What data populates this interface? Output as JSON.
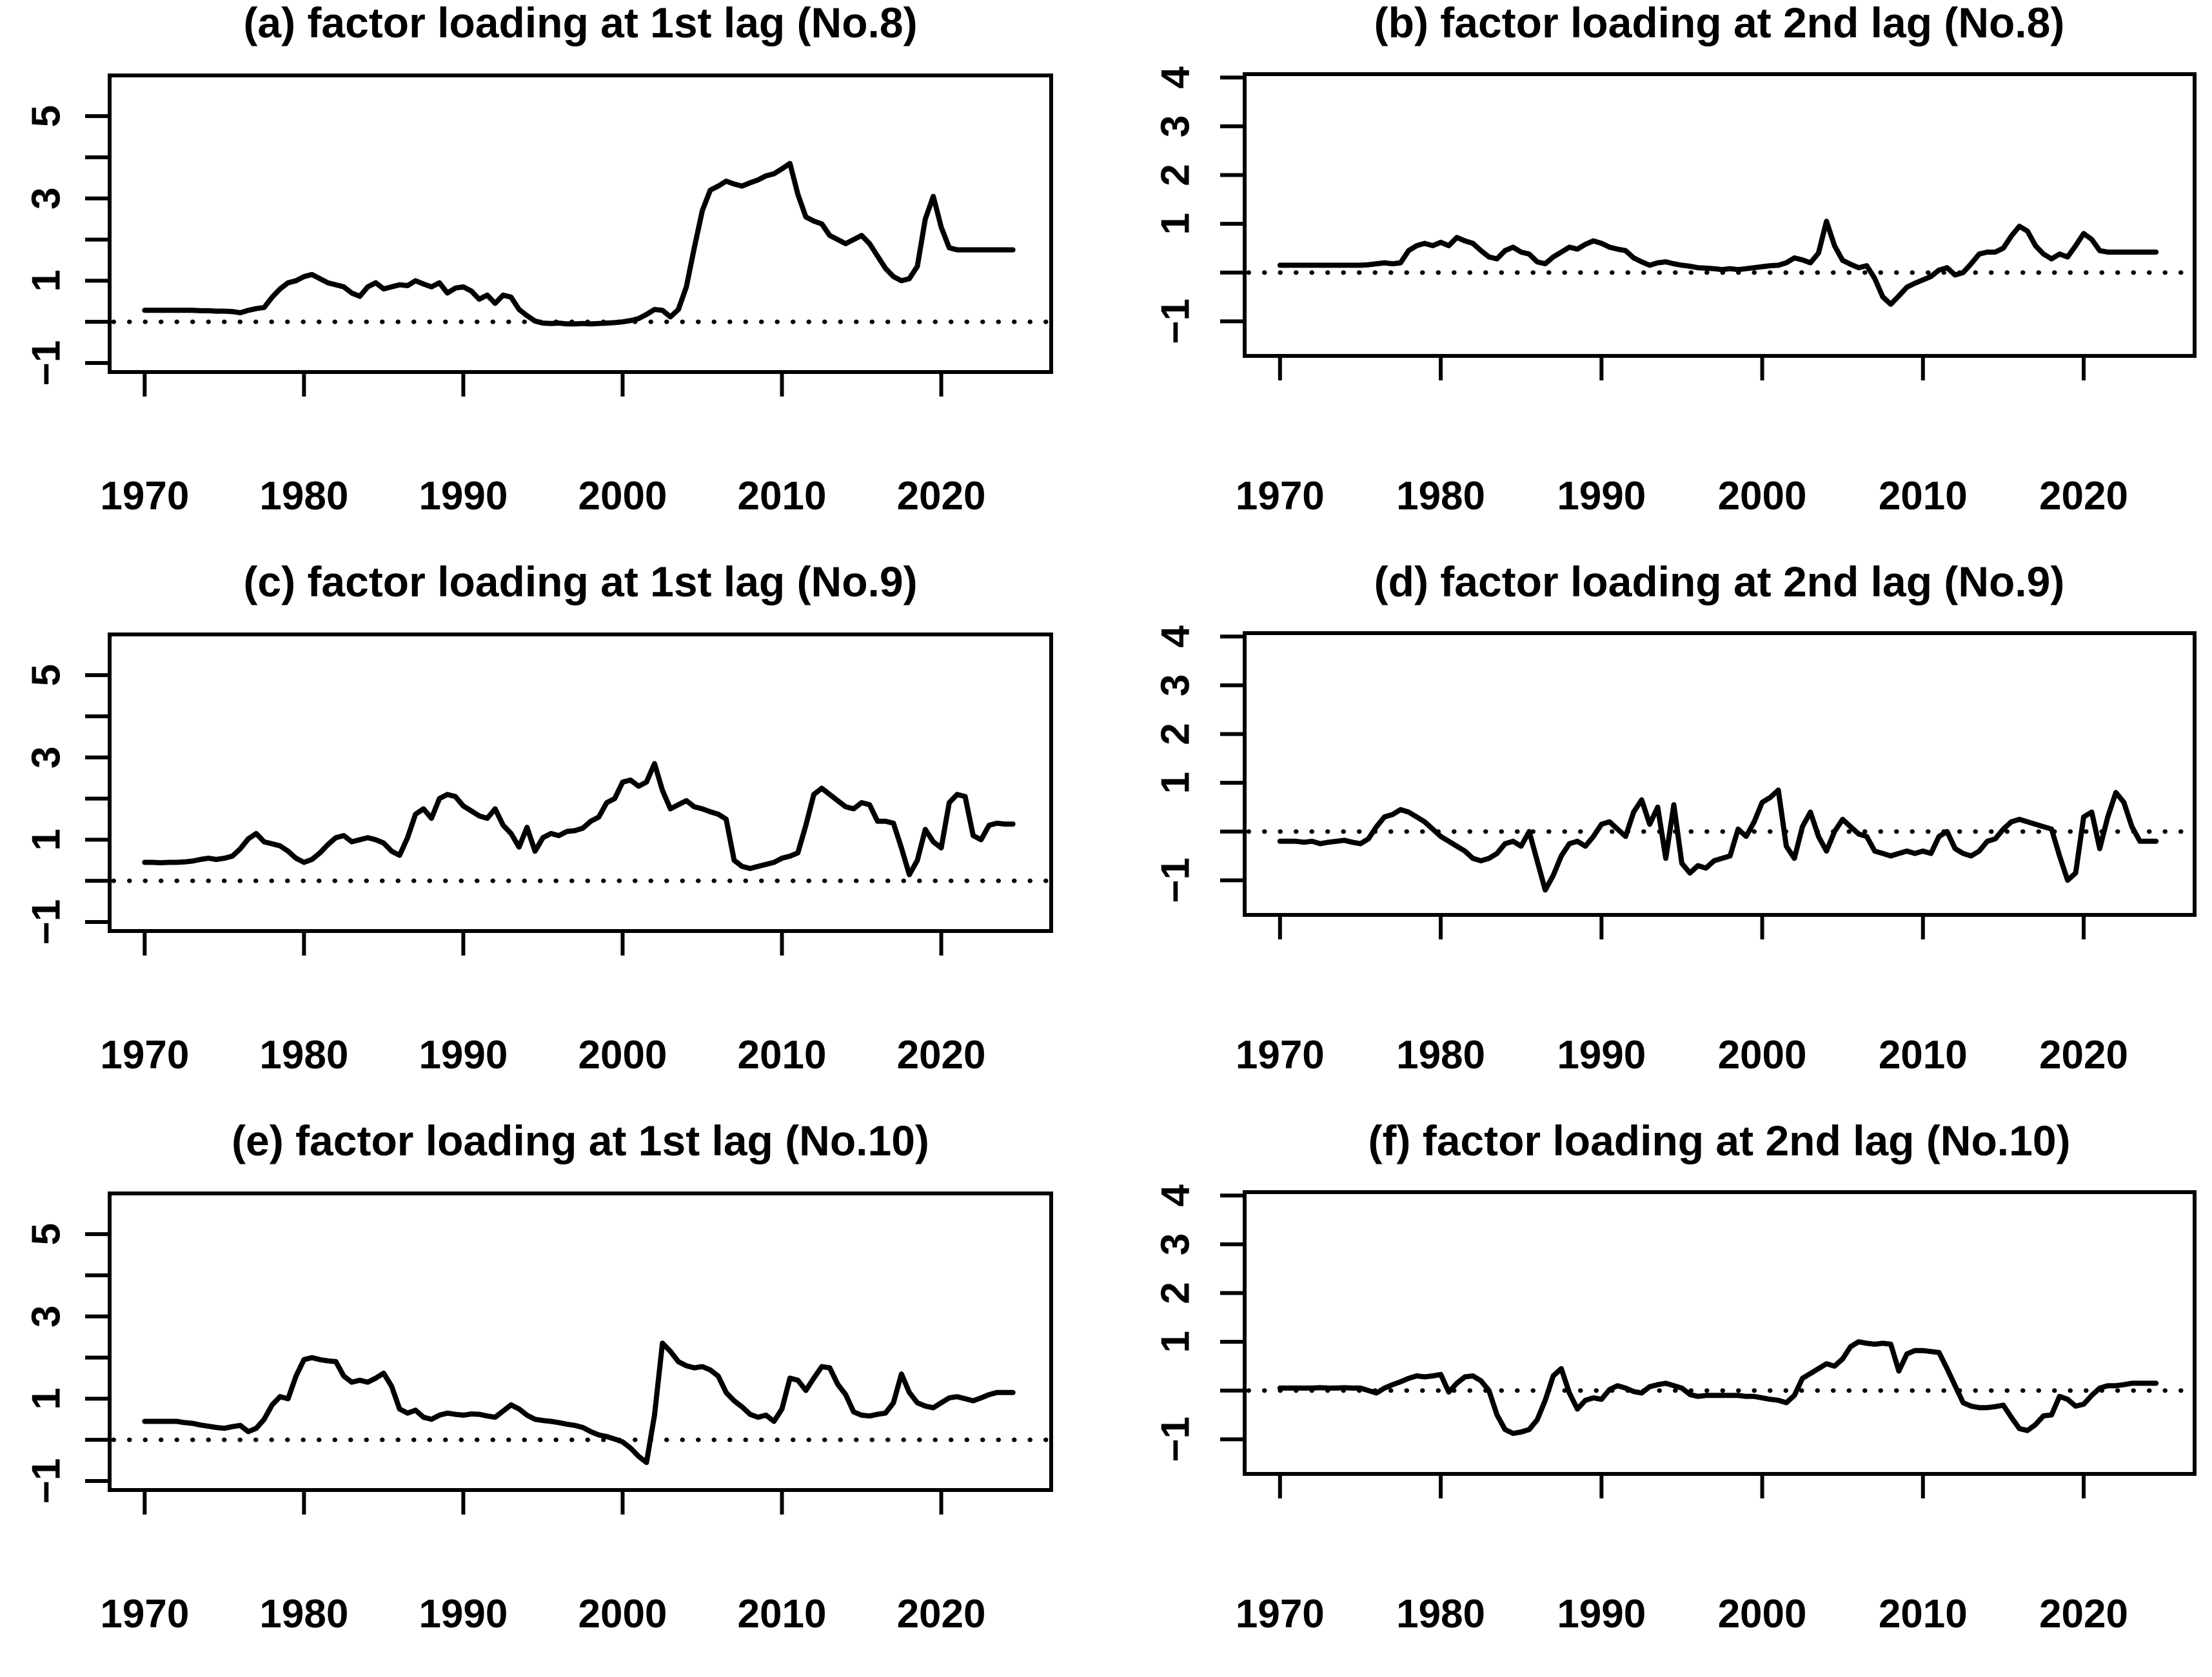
{
  "colors": {
    "foreground": "#000000",
    "background": "#ffffff"
  },
  "chart_data": [
    {
      "id": "a",
      "type": "line",
      "title": "(a) factor loading at 1st lag (No.8)",
      "xlabel": "",
      "ylabel": "",
      "xlim": [
        1967.8,
        2026.9
      ],
      "ylim": [
        -1.22,
        5.99
      ],
      "x_ticks": [
        1970,
        1980,
        1990,
        2000,
        2010,
        2020
      ],
      "y_ticks": [
        {
          "v": -1,
          "label": "−1"
        },
        {
          "v": 0,
          "label": ""
        },
        {
          "v": 1,
          "label": "1"
        },
        {
          "v": 2,
          "label": ""
        },
        {
          "v": 3,
          "label": "3"
        },
        {
          "v": 4,
          "label": ""
        },
        {
          "v": 5,
          "label": "5"
        }
      ],
      "zero_line": true,
      "x0": 1970,
      "dx": 0.5,
      "values": [
        0.28,
        0.28,
        0.28,
        0.28,
        0.28,
        0.28,
        0.28,
        0.27,
        0.27,
        0.26,
        0.26,
        0.25,
        0.22,
        0.28,
        0.32,
        0.35,
        0.6,
        0.8,
        0.95,
        1.0,
        1.1,
        1.15,
        1.05,
        0.95,
        0.9,
        0.85,
        0.7,
        0.62,
        0.85,
        0.95,
        0.8,
        0.85,
        0.9,
        0.88,
        1.0,
        0.92,
        0.85,
        0.95,
        0.7,
        0.82,
        0.85,
        0.75,
        0.55,
        0.65,
        0.45,
        0.65,
        0.6,
        0.3,
        0.15,
        0.02,
        -0.03,
        -0.04,
        -0.03,
        -0.05,
        -0.05,
        -0.04,
        -0.05,
        -0.04,
        -0.03,
        -0.02,
        0.0,
        0.03,
        0.08,
        0.18,
        0.3,
        0.28,
        0.12,
        0.3,
        0.85,
        1.8,
        2.7,
        3.2,
        3.3,
        3.42,
        3.35,
        3.3,
        3.38,
        3.45,
        3.55,
        3.6,
        3.72,
        3.85,
        3.1,
        2.55,
        2.45,
        2.38,
        2.1,
        2.0,
        1.9,
        2.0,
        2.1,
        1.9,
        1.6,
        1.3,
        1.1,
        1.0,
        1.05,
        1.35,
        2.5,
        3.05,
        2.3,
        1.8,
        1.75,
        1.75,
        1.75,
        1.75,
        1.75,
        1.75,
        1.75,
        1.75
      ]
    },
    {
      "id": "b",
      "type": "line",
      "title": "(b) factor loading at 2nd lag (No.8)",
      "xlabel": "",
      "ylabel": "",
      "xlim": [
        1967.8,
        2026.9
      ],
      "ylim": [
        -1.71,
        4.07
      ],
      "x_ticks": [
        1970,
        1980,
        1990,
        2000,
        2010,
        2020
      ],
      "y_ticks": [
        {
          "v": -1,
          "label": "−1"
        },
        {
          "v": 0,
          "label": ""
        },
        {
          "v": 1,
          "label": "1"
        },
        {
          "v": 2,
          "label": "2"
        },
        {
          "v": 3,
          "label": "3"
        },
        {
          "v": 4,
          "label": "4"
        }
      ],
      "zero_line": true,
      "x0": 1970,
      "dx": 0.5,
      "values": [
        0.15,
        0.15,
        0.15,
        0.15,
        0.15,
        0.15,
        0.15,
        0.15,
        0.15,
        0.15,
        0.15,
        0.16,
        0.18,
        0.2,
        0.18,
        0.2,
        0.45,
        0.55,
        0.6,
        0.55,
        0.62,
        0.55,
        0.72,
        0.65,
        0.6,
        0.45,
        0.32,
        0.28,
        0.45,
        0.52,
        0.42,
        0.38,
        0.22,
        0.18,
        0.32,
        0.42,
        0.52,
        0.48,
        0.58,
        0.65,
        0.6,
        0.52,
        0.48,
        0.45,
        0.3,
        0.22,
        0.15,
        0.2,
        0.22,
        0.18,
        0.15,
        0.13,
        0.1,
        0.09,
        0.08,
        0.06,
        0.08,
        0.06,
        0.08,
        0.1,
        0.12,
        0.14,
        0.15,
        0.2,
        0.3,
        0.26,
        0.2,
        0.4,
        1.05,
        0.55,
        0.25,
        0.17,
        0.1,
        0.14,
        -0.12,
        -0.5,
        -0.65,
        -0.48,
        -0.3,
        -0.22,
        -0.15,
        -0.08,
        0.05,
        0.1,
        -0.05,
        0.0,
        0.18,
        0.38,
        0.42,
        0.42,
        0.5,
        0.75,
        0.95,
        0.85,
        0.55,
        0.38,
        0.28,
        0.38,
        0.32,
        0.55,
        0.8,
        0.68,
        0.45,
        0.42,
        0.42,
        0.42,
        0.42,
        0.42,
        0.42,
        0.42
      ]
    },
    {
      "id": "c",
      "type": "line",
      "title": "(c) factor loading at 1st lag (No.9)",
      "xlabel": "",
      "ylabel": "",
      "xlim": [
        1967.8,
        2026.9
      ],
      "ylim": [
        -1.22,
        5.99
      ],
      "x_ticks": [
        1970,
        1980,
        1990,
        2000,
        2010,
        2020
      ],
      "y_ticks": [
        {
          "v": -1,
          "label": "−1"
        },
        {
          "v": 0,
          "label": ""
        },
        {
          "v": 1,
          "label": "1"
        },
        {
          "v": 2,
          "label": ""
        },
        {
          "v": 3,
          "label": "3"
        },
        {
          "v": 4,
          "label": ""
        },
        {
          "v": 5,
          "label": "5"
        }
      ],
      "zero_line": true,
      "x0": 1970,
      "dx": 0.5,
      "values": [
        0.45,
        0.45,
        0.44,
        0.45,
        0.45,
        0.46,
        0.48,
        0.52,
        0.55,
        0.52,
        0.55,
        0.6,
        0.78,
        1.02,
        1.15,
        0.95,
        0.9,
        0.85,
        0.72,
        0.55,
        0.45,
        0.52,
        0.68,
        0.88,
        1.05,
        1.1,
        0.95,
        1.0,
        1.05,
        1.0,
        0.92,
        0.72,
        0.62,
        1.05,
        1.62,
        1.75,
        1.52,
        2.0,
        2.1,
        2.05,
        1.82,
        1.7,
        1.58,
        1.52,
        1.75,
        1.35,
        1.15,
        0.82,
        1.3,
        0.72,
        1.05,
        1.15,
        1.1,
        1.2,
        1.22,
        1.28,
        1.45,
        1.55,
        1.9,
        2.0,
        2.4,
        2.45,
        2.3,
        2.4,
        2.85,
        2.2,
        1.75,
        1.85,
        1.95,
        1.8,
        1.75,
        1.68,
        1.62,
        1.5,
        0.5,
        0.35,
        0.3,
        0.35,
        0.4,
        0.45,
        0.55,
        0.6,
        0.68,
        1.35,
        2.1,
        2.25,
        2.1,
        1.95,
        1.8,
        1.75,
        1.9,
        1.85,
        1.45,
        1.45,
        1.4,
        0.8,
        0.15,
        0.5,
        1.25,
        0.95,
        0.8,
        1.9,
        2.1,
        2.05,
        1.1,
        1.0,
        1.35,
        1.4,
        1.38,
        1.38
      ]
    },
    {
      "id": "d",
      "type": "line",
      "title": "(d) factor loading at 2nd lag (No.9)",
      "xlabel": "",
      "ylabel": "",
      "xlim": [
        1967.8,
        2026.9
      ],
      "ylim": [
        -1.71,
        4.07
      ],
      "x_ticks": [
        1970,
        1980,
        1990,
        2000,
        2010,
        2020
      ],
      "y_ticks": [
        {
          "v": -1,
          "label": "−1"
        },
        {
          "v": 0,
          "label": ""
        },
        {
          "v": 1,
          "label": "1"
        },
        {
          "v": 2,
          "label": "2"
        },
        {
          "v": 3,
          "label": "3"
        },
        {
          "v": 4,
          "label": "4"
        }
      ],
      "zero_line": true,
      "x0": 1970,
      "dx": 0.5,
      "values": [
        -0.2,
        -0.2,
        -0.2,
        -0.22,
        -0.2,
        -0.25,
        -0.22,
        -0.2,
        -0.18,
        -0.22,
        -0.25,
        -0.15,
        0.1,
        0.3,
        0.35,
        0.45,
        0.4,
        0.3,
        0.2,
        0.05,
        -0.1,
        -0.2,
        -0.3,
        -0.4,
        -0.55,
        -0.6,
        -0.55,
        -0.45,
        -0.25,
        -0.2,
        -0.3,
        0.0,
        -0.6,
        -1.2,
        -0.9,
        -0.5,
        -0.25,
        -0.2,
        -0.3,
        -0.1,
        0.15,
        0.2,
        0.05,
        -0.1,
        0.4,
        0.65,
        0.15,
        0.5,
        -0.55,
        0.55,
        -0.65,
        -0.85,
        -0.7,
        -0.75,
        -0.6,
        -0.55,
        -0.5,
        0.05,
        -0.1,
        0.2,
        0.6,
        0.7,
        0.85,
        -0.3,
        -0.55,
        0.1,
        0.4,
        -0.1,
        -0.4,
        0.0,
        0.25,
        0.1,
        -0.05,
        -0.1,
        -0.4,
        -0.45,
        -0.5,
        -0.45,
        -0.4,
        -0.45,
        -0.4,
        -0.45,
        -0.1,
        0.0,
        -0.35,
        -0.45,
        -0.5,
        -0.4,
        -0.2,
        -0.15,
        0.05,
        0.2,
        0.25,
        0.2,
        0.15,
        0.1,
        0.05,
        -0.5,
        -1.0,
        -0.85,
        0.3,
        0.4,
        -0.35,
        0.3,
        0.8,
        0.6,
        0.1,
        -0.2,
        -0.2,
        -0.2
      ]
    },
    {
      "id": "e",
      "type": "line",
      "title": "(e) factor loading at 1st lag (No.10)",
      "xlabel": "",
      "ylabel": "",
      "xlim": [
        1967.8,
        2026.9
      ],
      "ylim": [
        -1.22,
        5.99
      ],
      "x_ticks": [
        1970,
        1980,
        1990,
        2000,
        2010,
        2020
      ],
      "y_ticks": [
        {
          "v": -1,
          "label": "−1"
        },
        {
          "v": 0,
          "label": ""
        },
        {
          "v": 1,
          "label": "1"
        },
        {
          "v": 2,
          "label": ""
        },
        {
          "v": 3,
          "label": "3"
        },
        {
          "v": 4,
          "label": ""
        },
        {
          "v": 5,
          "label": "5"
        }
      ],
      "zero_line": true,
      "x0": 1970,
      "dx": 0.5,
      "values": [
        0.45,
        0.45,
        0.45,
        0.45,
        0.45,
        0.42,
        0.4,
        0.36,
        0.33,
        0.3,
        0.28,
        0.32,
        0.35,
        0.2,
        0.28,
        0.5,
        0.85,
        1.05,
        1.0,
        1.55,
        1.95,
        2.0,
        1.95,
        1.92,
        1.9,
        1.55,
        1.4,
        1.45,
        1.4,
        1.5,
        1.62,
        1.3,
        0.75,
        0.65,
        0.72,
        0.55,
        0.5,
        0.6,
        0.65,
        0.62,
        0.6,
        0.63,
        0.62,
        0.58,
        0.55,
        0.7,
        0.85,
        0.75,
        0.6,
        0.5,
        0.47,
        0.45,
        0.42,
        0.38,
        0.35,
        0.3,
        0.2,
        0.12,
        0.08,
        0.02,
        -0.05,
        -0.2,
        -0.4,
        -0.55,
        0.6,
        2.35,
        2.15,
        1.9,
        1.8,
        1.75,
        1.78,
        1.7,
        1.55,
        1.15,
        0.95,
        0.8,
        0.62,
        0.55,
        0.6,
        0.45,
        0.75,
        1.5,
        1.45,
        1.2,
        1.5,
        1.78,
        1.75,
        1.35,
        1.1,
        0.68,
        0.6,
        0.58,
        0.62,
        0.65,
        0.9,
        1.6,
        1.15,
        0.9,
        0.82,
        0.78,
        0.9,
        1.02,
        1.05,
        1.0,
        0.95,
        1.02,
        1.1,
        1.15,
        1.15,
        1.15
      ]
    },
    {
      "id": "f",
      "type": "line",
      "title": "(f) factor loading at 2nd lag (No.10)",
      "xlabel": "",
      "ylabel": "",
      "xlim": [
        1967.8,
        2026.9
      ],
      "ylim": [
        -1.71,
        4.07
      ],
      "x_ticks": [
        1970,
        1980,
        1990,
        2000,
        2010,
        2020
      ],
      "y_ticks": [
        {
          "v": -1,
          "label": "−1"
        },
        {
          "v": 0,
          "label": ""
        },
        {
          "v": 1,
          "label": "1"
        },
        {
          "v": 2,
          "label": "2"
        },
        {
          "v": 3,
          "label": "3"
        },
        {
          "v": 4,
          "label": "4"
        }
      ],
      "zero_line": true,
      "x0": 1970,
      "dx": 0.5,
      "values": [
        0.05,
        0.05,
        0.05,
        0.05,
        0.05,
        0.06,
        0.05,
        0.05,
        0.06,
        0.05,
        0.05,
        0.0,
        -0.05,
        0.05,
        0.12,
        0.18,
        0.25,
        0.3,
        0.28,
        0.3,
        0.33,
        -0.03,
        0.15,
        0.28,
        0.3,
        0.2,
        0.0,
        -0.5,
        -0.8,
        -0.88,
        -0.85,
        -0.8,
        -0.6,
        -0.2,
        0.3,
        0.45,
        -0.05,
        -0.38,
        -0.2,
        -0.15,
        -0.18,
        0.02,
        0.1,
        0.05,
        -0.02,
        -0.05,
        0.08,
        0.12,
        0.15,
        0.1,
        0.05,
        -0.08,
        -0.12,
        -0.1,
        -0.1,
        -0.1,
        -0.1,
        -0.1,
        -0.12,
        -0.12,
        -0.15,
        -0.18,
        -0.2,
        -0.25,
        -0.1,
        0.25,
        0.35,
        0.45,
        0.55,
        0.5,
        0.65,
        0.9,
        1.0,
        0.97,
        0.95,
        0.97,
        0.95,
        0.4,
        0.75,
        0.82,
        0.82,
        0.8,
        0.78,
        0.45,
        0.1,
        -0.25,
        -0.32,
        -0.35,
        -0.35,
        -0.33,
        -0.3,
        -0.55,
        -0.78,
        -0.82,
        -0.7,
        -0.52,
        -0.5,
        -0.12,
        -0.18,
        -0.32,
        -0.28,
        -0.1,
        0.05,
        0.1,
        0.1,
        0.12,
        0.15,
        0.15,
        0.15,
        0.15
      ]
    }
  ]
}
